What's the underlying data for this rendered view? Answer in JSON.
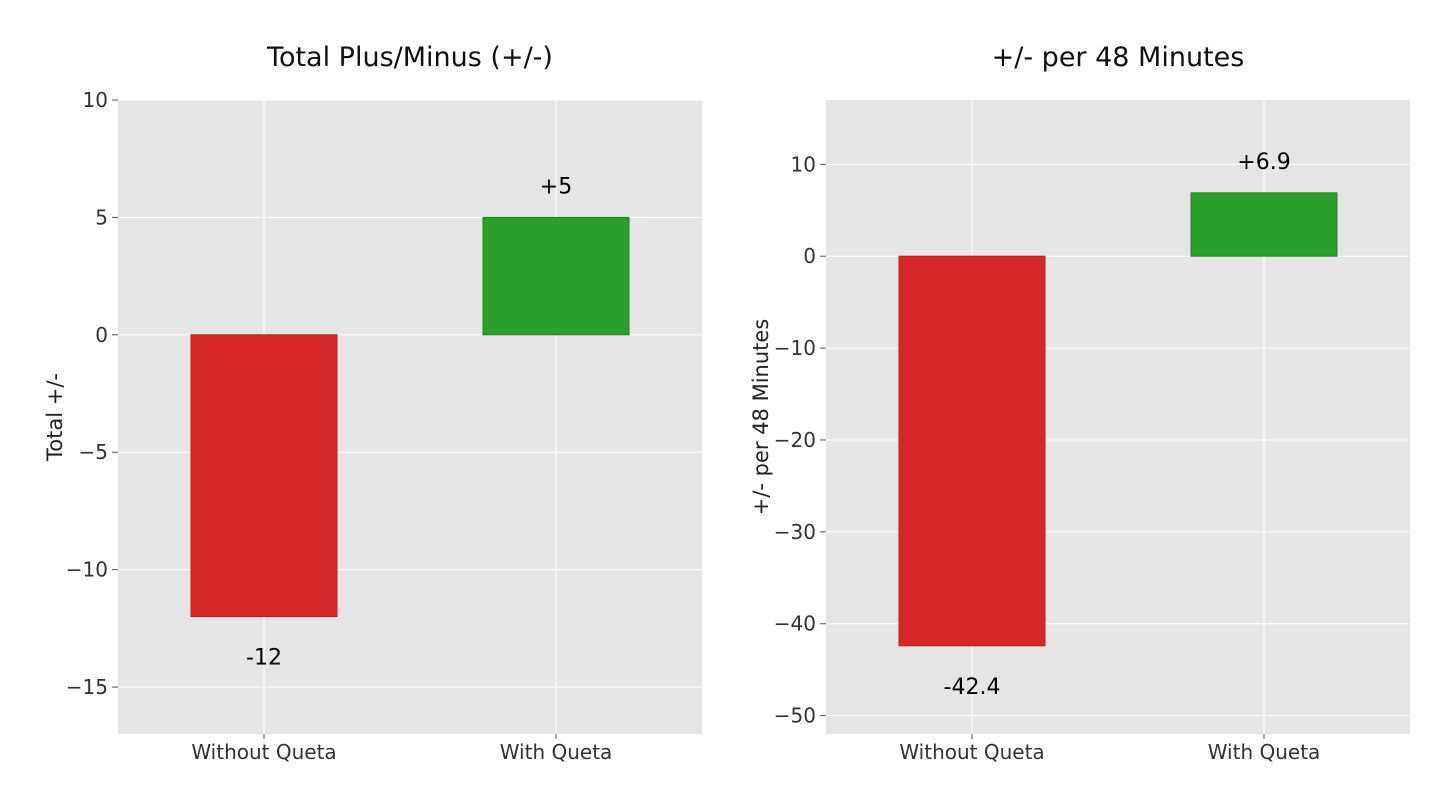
{
  "chart_data": [
    {
      "type": "bar",
      "title": "Total Plus/Minus (+/-)",
      "xlabel": "",
      "ylabel": "Total +/-",
      "categories": [
        "Without Queta",
        "With Queta"
      ],
      "values": [
        -12,
        5
      ],
      "value_labels": [
        "-12",
        "+5"
      ],
      "colors": [
        "#d62728",
        "#2ca02c"
      ],
      "ylim": [
        -17,
        10
      ],
      "yticks": [
        10,
        5,
        0,
        -5,
        -10,
        -15
      ],
      "ytick_labels": [
        "10",
        "5",
        "0",
        "−5",
        "−10",
        "−15"
      ],
      "grid": true,
      "background": "#e5e5e5"
    },
    {
      "type": "bar",
      "title": "+/- per 48 Minutes",
      "xlabel": "",
      "ylabel": "+/- per 48 Minutes",
      "categories": [
        "Without Queta",
        "With Queta"
      ],
      "values": [
        -42.4,
        6.9
      ],
      "value_labels": [
        "-42.4",
        "+6.9"
      ],
      "colors": [
        "#d62728",
        "#2ca02c"
      ],
      "ylim": [
        -52,
        17
      ],
      "yticks": [
        10,
        0,
        -10,
        -20,
        -30,
        -40,
        -50
      ],
      "ytick_labels": [
        "10",
        "0",
        "−10",
        "−20",
        "−30",
        "−40",
        "−50"
      ],
      "grid": true,
      "background": "#e5e5e5"
    }
  ]
}
